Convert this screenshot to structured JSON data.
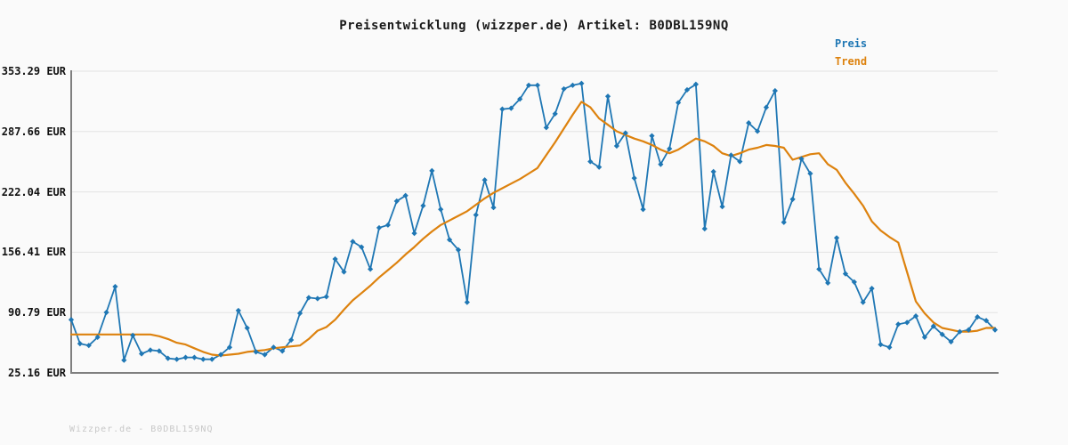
{
  "header": {
    "title": "Preisentwicklung (wizzper.de) Artikel: B0DBL159NQ"
  },
  "legend": {
    "items": [
      {
        "label": "Preis",
        "color": "#1f77b4"
      },
      {
        "label": "Trend",
        "color": "#dd820e"
      }
    ]
  },
  "watermark": "Wizzper.de - B0DBL159NQ",
  "chart_data": {
    "type": "line",
    "title": "Preisentwicklung (wizzper.de) Artikel: B0DBL159NQ",
    "xlabel": "",
    "ylabel": "",
    "x_axis_labels_visible": false,
    "grid": "horizontal",
    "legend_position": "top-right",
    "ylim": [
      25.16,
      353.29
    ],
    "y_ticks": [
      {
        "value": 353.29,
        "label": "353.29 EUR"
      },
      {
        "value": 287.66,
        "label": "287.66 EUR"
      },
      {
        "value": 222.04,
        "label": "222.04 EUR"
      },
      {
        "value": 156.41,
        "label": "156.41 EUR"
      },
      {
        "value": 90.79,
        "label": "90.79 EUR"
      },
      {
        "value": 25.16,
        "label": "25.16 EUR"
      }
    ],
    "unit": "EUR",
    "series": [
      {
        "name": "Preis",
        "color": "#1f77b4",
        "marker": "diamond",
        "values": [
          83,
          57,
          55,
          64,
          91,
          119,
          39,
          66,
          46,
          50,
          49,
          41,
          40,
          42,
          42,
          40,
          40,
          45,
          53,
          93,
          74,
          48,
          45,
          53,
          49,
          61,
          90,
          107,
          106,
          108,
          149,
          135,
          168,
          162,
          138,
          183,
          186,
          212,
          218,
          177,
          207,
          245,
          203,
          170,
          159,
          102,
          197,
          235,
          205,
          312,
          313,
          323,
          338,
          338,
          292,
          307,
          334,
          338,
          340,
          255,
          249,
          326,
          272,
          286,
          237,
          203,
          283,
          252,
          269,
          319,
          333,
          339,
          182,
          244,
          206,
          262,
          255,
          297,
          288,
          314,
          332,
          189,
          214,
          258,
          242,
          138,
          123,
          172,
          133,
          124,
          102,
          117,
          56,
          53,
          78,
          80,
          87,
          64,
          76,
          67,
          59,
          70,
          72,
          86,
          82,
          72
        ]
      },
      {
        "name": "Trend",
        "color": "#dd820e",
        "marker": "none",
        "values": [
          67,
          67,
          67,
          67,
          67,
          67,
          67,
          67,
          67,
          67,
          65,
          62,
          58,
          56,
          52,
          48,
          45,
          44,
          45,
          46,
          48,
          49,
          50,
          52,
          53,
          54,
          55,
          62,
          71,
          75,
          83,
          94,
          104,
          112,
          120,
          129,
          137,
          145,
          154,
          162,
          171,
          179,
          186,
          191,
          196,
          201,
          208,
          215,
          221,
          226,
          231,
          236,
          242,
          248,
          262,
          276,
          291,
          306,
          320,
          314,
          302,
          295,
          288,
          284,
          280,
          277,
          273,
          268,
          264,
          268,
          274,
          280,
          277,
          272,
          264,
          261,
          264,
          268,
          270,
          273,
          272,
          270,
          257,
          260,
          263,
          264,
          252,
          246,
          232,
          220,
          207,
          190,
          180,
          173,
          167,
          135,
          103,
          90,
          80,
          74,
          72,
          70,
          70,
          71,
          74,
          74
        ]
      }
    ]
  }
}
